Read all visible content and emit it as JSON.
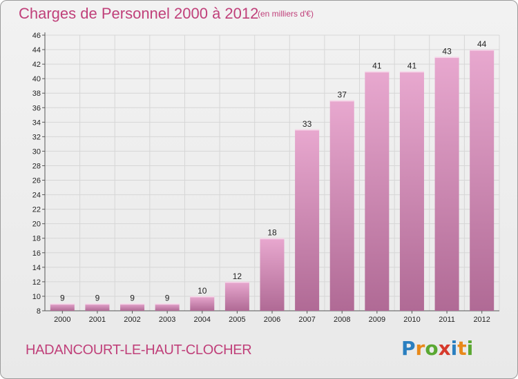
{
  "title": "Charges de Personnel 2000 à 2012",
  "subtitle": "(en milliers d'€)",
  "location": "HADANCOURT-LE-HAUT-CLOCHER",
  "logo": {
    "letters": [
      "P",
      "r",
      "o",
      "x",
      "i",
      "t",
      "i"
    ],
    "colors": [
      "#2a7fc0",
      "#e8891a",
      "#5aa832",
      "#d63a2c",
      "#2a7fc0",
      "#e8891a",
      "#5aa832"
    ]
  },
  "colors": {
    "title": "#c0407a",
    "bar_top": "#e8a8cf",
    "bar_bottom": "#b06a95"
  },
  "chart_data": {
    "type": "bar",
    "categories": [
      "2000",
      "2001",
      "2002",
      "2003",
      "2004",
      "2005",
      "2006",
      "2007",
      "2008",
      "2009",
      "2010",
      "2011",
      "2012"
    ],
    "values": [
      9,
      9,
      9,
      9,
      10,
      12,
      18,
      33,
      37,
      41,
      41,
      43,
      44
    ],
    "ylim": [
      8,
      46
    ],
    "yticks": [
      8,
      10,
      12,
      14,
      16,
      18,
      20,
      22,
      24,
      26,
      28,
      30,
      32,
      34,
      36,
      38,
      40,
      42,
      44,
      46
    ],
    "grid": true
  }
}
